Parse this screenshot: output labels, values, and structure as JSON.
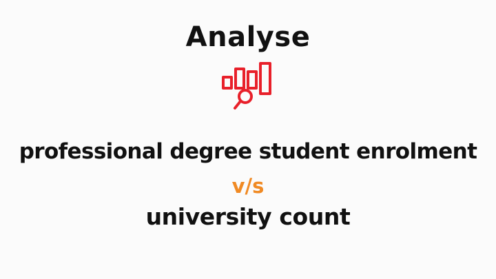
{
  "heading": "Analyse",
  "icon": "bar-chart-magnifier-icon",
  "subtitle": {
    "line1": "professional degree student enrolment",
    "separator": "v/s",
    "line2": "university count"
  },
  "colors": {
    "text": "#111111",
    "icon": "#e8202a",
    "separator": "#f08a24",
    "background": "#fbfbfb"
  }
}
